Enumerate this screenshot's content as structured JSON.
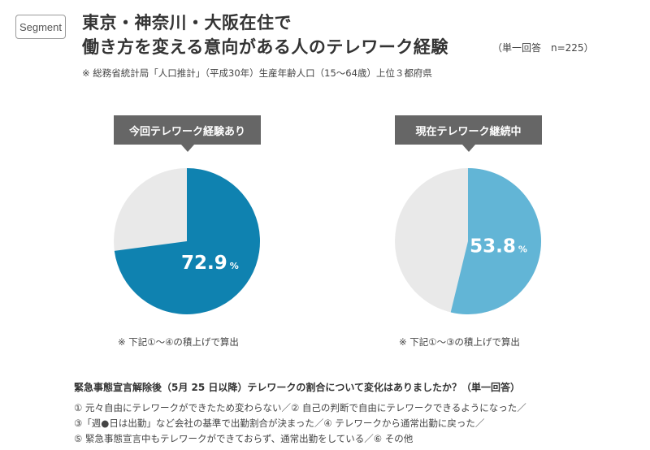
{
  "badge": "Segment",
  "title": {
    "line1": "東京・神奈川・大阪在住で",
    "line2": "働き方を変える意向がある人のテレワーク経験",
    "meta": "（単一回答　n=225）"
  },
  "source_note": "※ 総務省統計局「人口推計」（平成30年）生産年齢人口（15～64歳）上位３都府県",
  "chart_data": [
    {
      "type": "pie",
      "title": "今回テレワーク経験あり",
      "value": 72.9,
      "value_label": "72.9",
      "unit": "%",
      "remainder": 27.1,
      "colors": {
        "value": "#0f82b0",
        "remainder": "#e9e9e9"
      },
      "note": "※ 下記①～④の積上げで算出"
    },
    {
      "type": "pie",
      "title": "現在テレワーク継続中",
      "value": 53.8,
      "value_label": "53.8",
      "unit": "%",
      "remainder": 46.2,
      "colors": {
        "value": "#62b5d6",
        "remainder": "#e9e9e9"
      },
      "note": "※ 下記①～③の積上げで算出"
    }
  ],
  "question": "緊急事態宣言解除後（5月 25 日以降）テレワークの割合について変化はありましたか？（単一回答）",
  "options": [
    "① 元々自由にテレワークができたため変わらない／② 自己の判断で自由にテレワークできるようになった／",
    "③「週●日は出勤」など会社の基準で出勤割合が決まった／④ テレワークから通常出勤に戻った／",
    "⑤ 緊急事態宣言中もテレワークができておらず、通常出勤をしている／⑥ その他"
  ]
}
